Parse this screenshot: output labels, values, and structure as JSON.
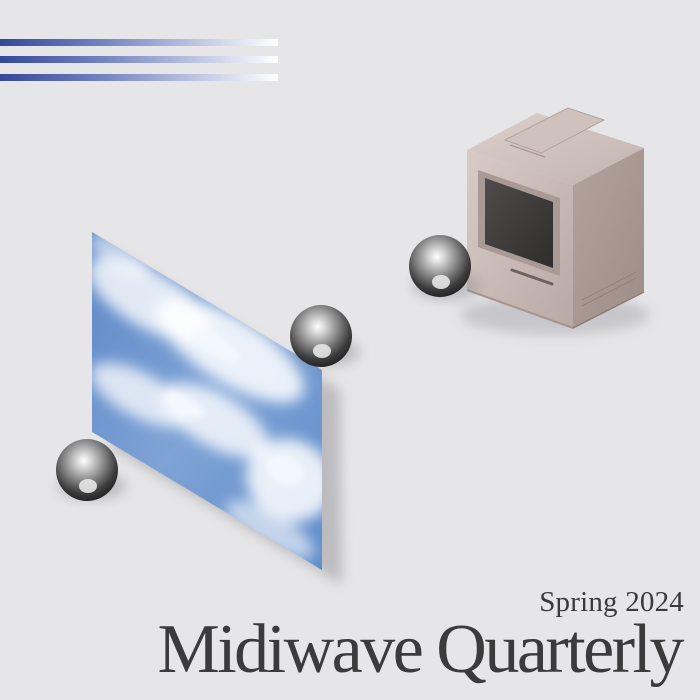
{
  "cover": {
    "subtitle": "Spring 2024",
    "title": "Midiwave Quarterly"
  },
  "colors": {
    "background": "#e6e6e8",
    "stripe_blue": "#3a4fa0",
    "text": "#3b3b3b",
    "computer_body": "#c7b8b3",
    "sky_blue": "#6f97cf"
  },
  "illustration": {
    "objects": [
      "speed-stripes",
      "sky-panel",
      "chrome-sphere",
      "chrome-sphere",
      "chrome-sphere",
      "vintage-computer"
    ]
  }
}
